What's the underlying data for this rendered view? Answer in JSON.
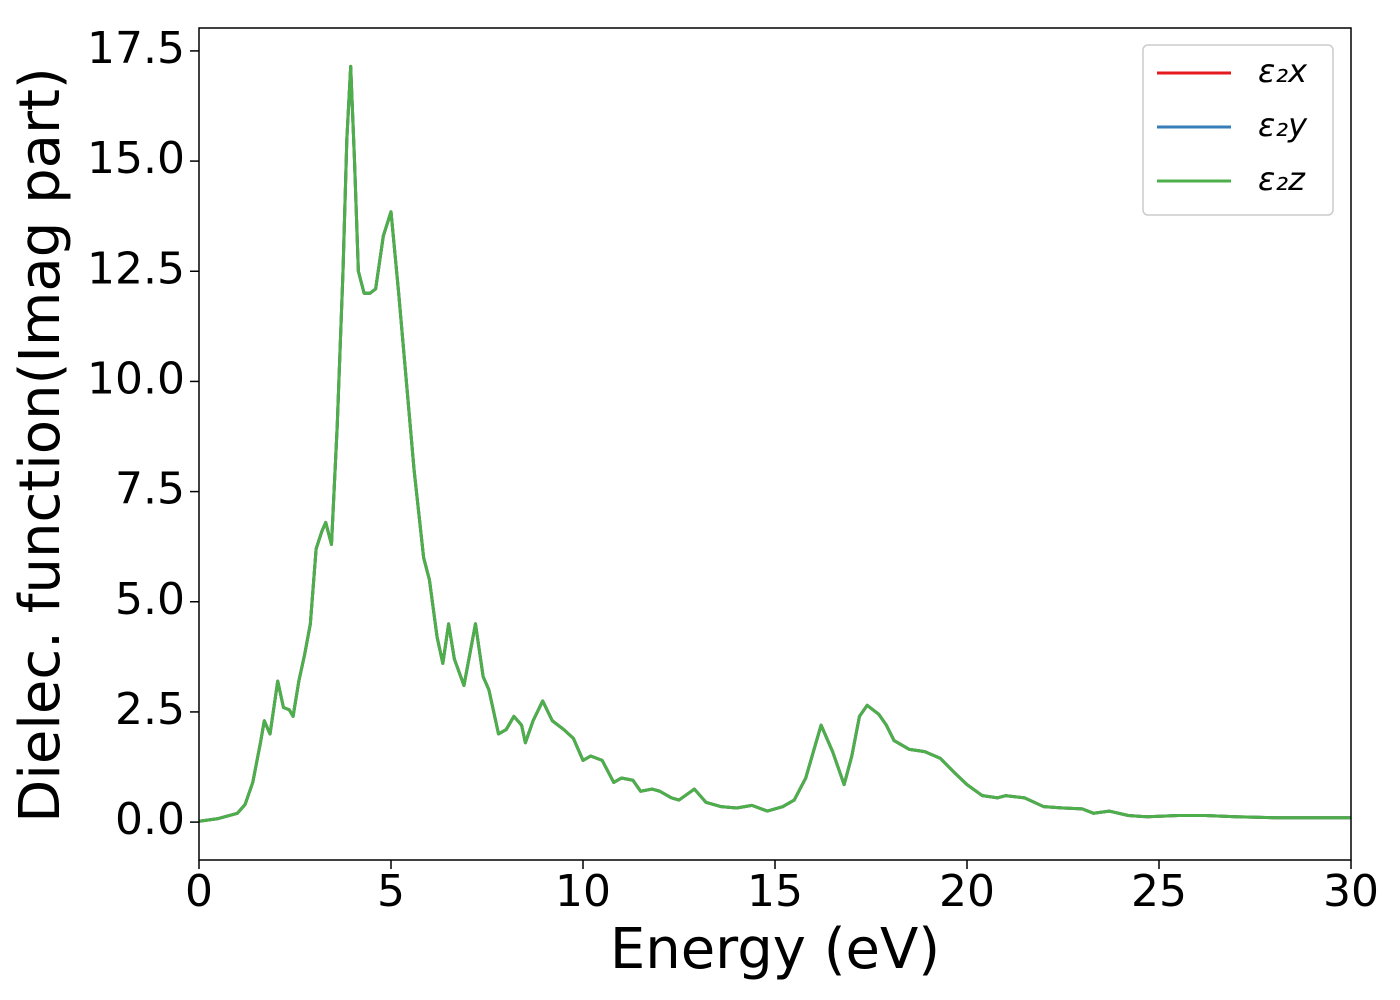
{
  "chart_data": {
    "type": "line",
    "xlabel": "Energy (eV)",
    "ylabel": "Dielec. function(Imag part)",
    "x": [
      0,
      0.5,
      1.0,
      1.2,
      1.4,
      1.6,
      1.7,
      1.85,
      2.0,
      2.05,
      2.2,
      2.35,
      2.45,
      2.6,
      2.75,
      2.9,
      3.05,
      3.2,
      3.3,
      3.45,
      3.6,
      3.75,
      3.85,
      3.95,
      4.05,
      4.15,
      4.3,
      4.45,
      4.6,
      4.8,
      5.0,
      5.2,
      5.4,
      5.6,
      5.85,
      6.0,
      6.2,
      6.35,
      6.5,
      6.65,
      6.9,
      7.2,
      7.4,
      7.55,
      7.8,
      8.0,
      8.2,
      8.4,
      8.5,
      8.7,
      8.95,
      9.2,
      9.5,
      9.75,
      10.0,
      10.2,
      10.5,
      10.8,
      11.0,
      11.3,
      11.5,
      11.8,
      12.0,
      12.3,
      12.5,
      12.9,
      13.2,
      13.6,
      14.0,
      14.4,
      14.8,
      15.2,
      15.5,
      15.8,
      16.0,
      16.2,
      16.5,
      16.8,
      17.0,
      17.2,
      17.4,
      17.7,
      17.9,
      18.1,
      18.5,
      18.9,
      19.3,
      19.7,
      20.0,
      20.4,
      20.8,
      21.0,
      21.5,
      22.0,
      22.5,
      23.0,
      23.3,
      23.7,
      24.2,
      24.7,
      25.5,
      26.2,
      27,
      28,
      29,
      30
    ],
    "series": [
      {
        "name": "ε₂x",
        "color": "#e41a1c",
        "values": [
          0.02,
          0.08,
          0.2,
          0.4,
          0.9,
          1.8,
          2.3,
          2.0,
          2.9,
          3.2,
          2.6,
          2.55,
          2.4,
          3.2,
          3.8,
          4.5,
          6.2,
          6.6,
          6.8,
          6.3,
          9,
          12.5,
          15.5,
          17.15,
          15,
          12.5,
          12.0,
          12.0,
          12.1,
          13.3,
          13.85,
          12,
          10,
          8,
          6,
          5.5,
          4.2,
          3.6,
          4.5,
          3.7,
          3.1,
          4.5,
          3.3,
          3.0,
          2.0,
          2.1,
          2.4,
          2.2,
          1.8,
          2.3,
          2.75,
          2.3,
          2.1,
          1.9,
          1.4,
          1.5,
          1.4,
          0.9,
          1.0,
          0.95,
          0.7,
          0.75,
          0.7,
          0.55,
          0.5,
          0.75,
          0.45,
          0.35,
          0.32,
          0.38,
          0.25,
          0.35,
          0.5,
          1.0,
          1.6,
          2.2,
          1.6,
          0.85,
          1.5,
          2.4,
          2.65,
          2.45,
          2.2,
          1.85,
          1.65,
          1.6,
          1.45,
          1.1,
          0.85,
          0.6,
          0.55,
          0.6,
          0.55,
          0.35,
          0.32,
          0.3,
          0.2,
          0.25,
          0.15,
          0.12,
          0.15,
          0.15,
          0.12,
          0.1,
          0.1,
          0.1
        ]
      },
      {
        "name": "ε₂y",
        "color": "#377eb8",
        "values": [
          0.02,
          0.08,
          0.2,
          0.4,
          0.9,
          1.8,
          2.3,
          2.0,
          2.9,
          3.2,
          2.6,
          2.55,
          2.4,
          3.2,
          3.8,
          4.5,
          6.2,
          6.6,
          6.8,
          6.3,
          9,
          12.5,
          15.5,
          17.15,
          15,
          12.5,
          12.0,
          12.0,
          12.1,
          13.3,
          13.85,
          12,
          10,
          8,
          6,
          5.5,
          4.2,
          3.6,
          4.5,
          3.7,
          3.1,
          4.5,
          3.3,
          3.0,
          2.0,
          2.1,
          2.4,
          2.2,
          1.8,
          2.3,
          2.75,
          2.3,
          2.1,
          1.9,
          1.4,
          1.5,
          1.4,
          0.9,
          1.0,
          0.95,
          0.7,
          0.75,
          0.7,
          0.55,
          0.5,
          0.75,
          0.45,
          0.35,
          0.32,
          0.38,
          0.25,
          0.35,
          0.5,
          1.0,
          1.6,
          2.2,
          1.6,
          0.85,
          1.5,
          2.4,
          2.65,
          2.45,
          2.2,
          1.85,
          1.65,
          1.6,
          1.45,
          1.1,
          0.85,
          0.6,
          0.55,
          0.6,
          0.55,
          0.35,
          0.32,
          0.3,
          0.2,
          0.25,
          0.15,
          0.12,
          0.15,
          0.15,
          0.12,
          0.1,
          0.1,
          0.1
        ]
      },
      {
        "name": "ε₂z",
        "color": "#4daf4a",
        "values": [
          0.02,
          0.08,
          0.2,
          0.4,
          0.9,
          1.8,
          2.3,
          2.0,
          2.9,
          3.2,
          2.6,
          2.55,
          2.4,
          3.2,
          3.8,
          4.5,
          6.2,
          6.6,
          6.8,
          6.3,
          9,
          12.5,
          15.5,
          17.15,
          15,
          12.5,
          12.0,
          12.0,
          12.1,
          13.3,
          13.85,
          12,
          10,
          8,
          6,
          5.5,
          4.2,
          3.6,
          4.5,
          3.7,
          3.1,
          4.5,
          3.3,
          3.0,
          2.0,
          2.1,
          2.4,
          2.2,
          1.8,
          2.3,
          2.75,
          2.3,
          2.1,
          1.9,
          1.4,
          1.5,
          1.4,
          0.9,
          1.0,
          0.95,
          0.7,
          0.75,
          0.7,
          0.55,
          0.5,
          0.75,
          0.45,
          0.35,
          0.32,
          0.38,
          0.25,
          0.35,
          0.5,
          1.0,
          1.6,
          2.2,
          1.6,
          0.85,
          1.5,
          2.4,
          2.65,
          2.45,
          2.2,
          1.85,
          1.65,
          1.6,
          1.45,
          1.1,
          0.85,
          0.6,
          0.55,
          0.6,
          0.55,
          0.35,
          0.32,
          0.3,
          0.2,
          0.25,
          0.15,
          0.12,
          0.15,
          0.15,
          0.12,
          0.1,
          0.1,
          0.1
        ]
      }
    ],
    "xlim": [
      0,
      30
    ],
    "xticks": [
      0,
      5,
      10,
      15,
      20,
      25,
      30
    ],
    "ylim": [
      -0.86,
      18.02
    ],
    "yticks": [
      {
        "value": 0,
        "label": "0.0"
      },
      2.5,
      {
        "value": 5,
        "label": "5.0"
      },
      7.5,
      {
        "value": 10,
        "label": "10.0"
      },
      12.5,
      {
        "value": 15,
        "label": "15.0"
      },
      17.5
    ],
    "grid": false,
    "legend": "upper right"
  }
}
